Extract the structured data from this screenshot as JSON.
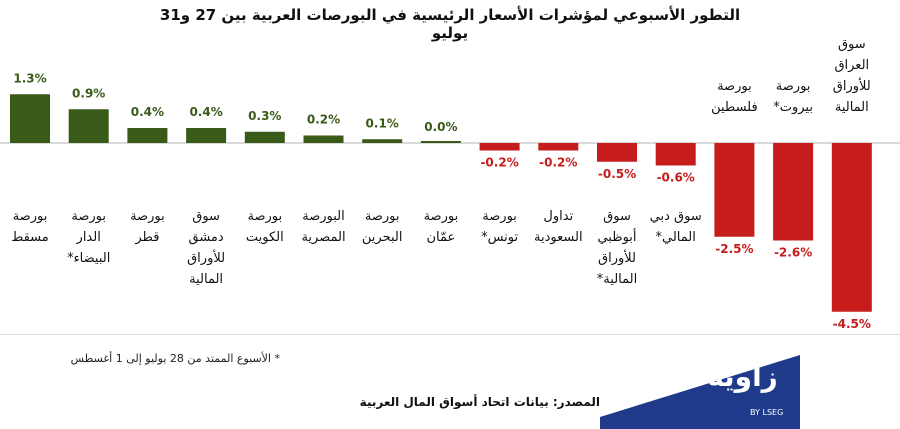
{
  "title": "التطور الأسبوعي لمؤشرات الأسعار الرئيسية في البورصات العربية بين 27 و31 يوليو",
  "footnote": "* الأسبوع الممتد من 28 يوليو إلى 1 أغسطس",
  "source": "المصدر: بيانات اتحاد أسواق المال العربية",
  "logo": {
    "text": "زاوية",
    "sub": "BY LSEG"
  },
  "colors": {
    "positive": "#3a5a1a",
    "negative": "#c71c1c",
    "axis": "#b5b5b5"
  },
  "chart_data": {
    "type": "bar",
    "categories": [
      "بورصة مسقط",
      "بورصة الدار البيضاء*",
      "بورصة قطر",
      "سوق دمشق للأوراق المالية",
      "بورصة الكويت",
      "البورصة المصرية",
      "بورصة البحرين",
      "بورصة عمّان",
      "بورصة تونس*",
      "تداول السعودية",
      "سوق أبوظبي للأوراق المالية*",
      "سوق دبي المالي*",
      "بورصة فلسطين",
      "بورصة بيروت*",
      "سوق العراق للأوراق المالية"
    ],
    "values": [
      1.3,
      0.9,
      0.4,
      0.4,
      0.3,
      0.2,
      0.1,
      0.0,
      -0.2,
      -0.2,
      -0.5,
      -0.6,
      -2.5,
      -2.6,
      -4.5
    ],
    "value_labels": [
      "1.3%",
      "0.9%",
      "0.4%",
      "0.4%",
      "0.3%",
      "0.2%",
      "0.1%",
      "0.0%",
      "-0.2%",
      "-0.2%",
      "-0.5%",
      "-0.6%",
      "-2.5%",
      "-2.6%",
      "-4.5%"
    ],
    "unit": "%",
    "ylim": [
      -4.5,
      1.3
    ],
    "grid": false,
    "legend": "none"
  }
}
